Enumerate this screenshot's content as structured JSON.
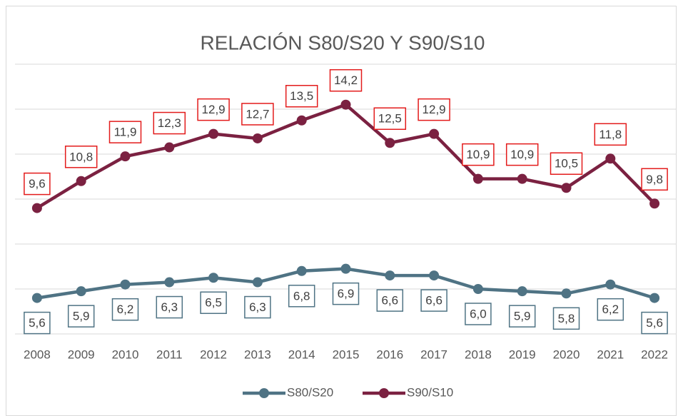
{
  "chart_data": {
    "type": "line",
    "title": "RELACIÓN S80/S20 Y S90/S10",
    "categories": [
      "2008",
      "2009",
      "2010",
      "2011",
      "2012",
      "2013",
      "2014",
      "2015",
      "2016",
      "2017",
      "2018",
      "2019",
      "2020",
      "2021",
      "2022"
    ],
    "series": [
      {
        "name": "S80/S20",
        "color": "#4f7384",
        "values": [
          5.6,
          5.9,
          6.2,
          6.3,
          6.5,
          6.3,
          6.8,
          6.9,
          6.6,
          6.6,
          6.0,
          5.9,
          5.8,
          6.2,
          5.6
        ],
        "value_labels": [
          "5,6",
          "5,9",
          "6,2",
          "6,3",
          "6,5",
          "6,3",
          "6,8",
          "6,9",
          "6,6",
          "6,6",
          "6,0",
          "5,9",
          "5,8",
          "6,2",
          "5,6"
        ],
        "label_border": "#4f7384",
        "label_position": "below"
      },
      {
        "name": "S90/S10",
        "color": "#7b2141",
        "values": [
          9.6,
          10.8,
          11.9,
          12.3,
          12.9,
          12.7,
          13.5,
          14.2,
          12.5,
          12.9,
          10.9,
          10.9,
          10.5,
          11.8,
          9.8
        ],
        "value_labels": [
          "9,6",
          "10,8",
          "11,9",
          "12,3",
          "12,9",
          "12,7",
          "13,5",
          "14,2",
          "12,5",
          "12,9",
          "10,9",
          "10,9",
          "10,5",
          "11,8",
          "9,8"
        ],
        "label_border": "#e31b1b",
        "label_position": "above"
      }
    ],
    "ylim": [
      4,
      16
    ],
    "yticks": [
      4,
      6,
      8,
      10,
      12,
      14,
      16
    ],
    "grid": true,
    "legend": "bottom"
  }
}
